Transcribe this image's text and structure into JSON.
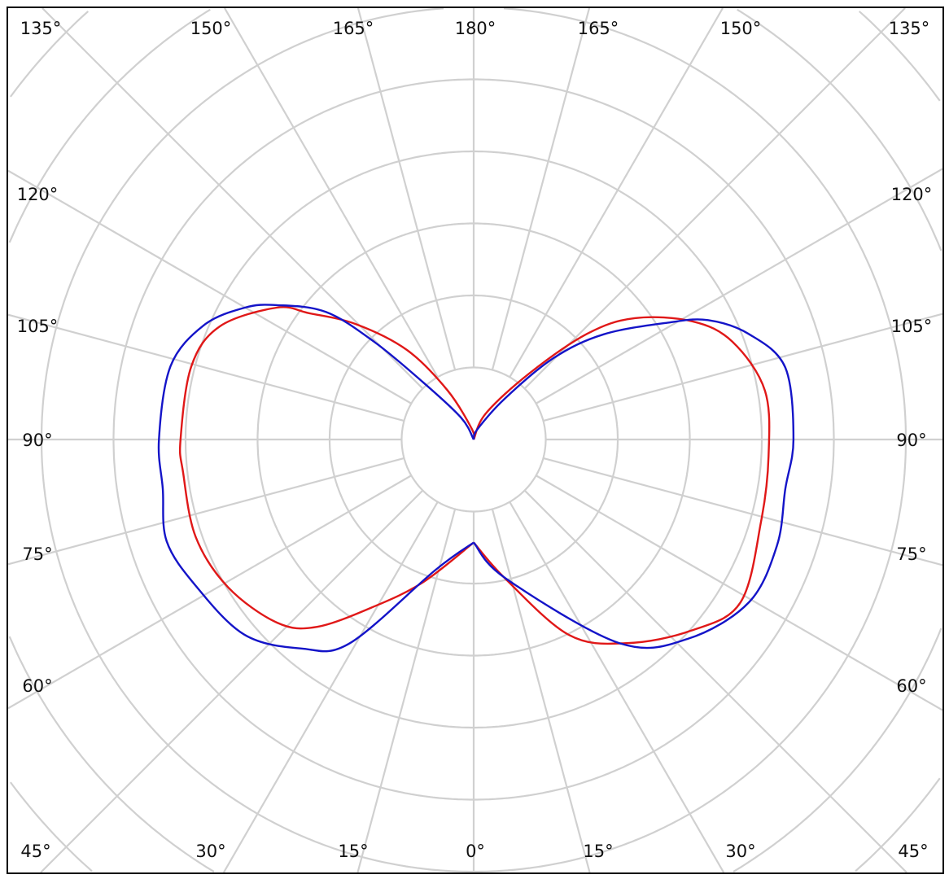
{
  "chart_data": {
    "type": "polar",
    "title": "",
    "angle_unit": "degrees",
    "angle_zero": "bottom",
    "angle_step": 15,
    "radial_unit": "ring",
    "radial_rings": 9,
    "radial_tick_labels_shown": false,
    "grid": true,
    "grid_color": "#d0d0d0",
    "tick_labels": {
      "top": [
        "135°",
        "150°",
        "165°",
        "180°",
        "165°",
        "150°",
        "135°"
      ],
      "left": [
        "120°",
        "105°",
        "90°",
        "75°",
        "60°"
      ],
      "right": [
        "120°",
        "105°",
        "90°",
        "75°",
        "60°"
      ],
      "bottom": [
        "45°",
        "30°",
        "15°",
        "0°",
        "15°",
        "30°",
        "45°"
      ]
    },
    "series": [
      {
        "color": "#e01818",
        "left": [
          [
            0,
            1.43
          ],
          [
            19.5,
            2.1
          ],
          [
            30.8,
            2.7
          ],
          [
            39.9,
            3.39
          ],
          [
            47,
            3.73
          ],
          [
            59,
            3.98
          ],
          [
            70.7,
            4.09
          ],
          [
            83.6,
            4.06
          ],
          [
            90,
            4.07
          ],
          [
            104.5,
            4.05
          ],
          [
            114,
            3.86
          ],
          [
            123.8,
            3.29
          ],
          [
            127.5,
            2.88
          ],
          [
            134.4,
            2.29
          ],
          [
            143.3,
            1.55
          ],
          [
            152,
            0.77
          ],
          [
            170,
            0.15
          ],
          [
            180,
            0
          ]
        ],
        "right": [
          [
            0,
            1.43
          ],
          [
            12.6,
            1.97
          ],
          [
            26,
            3.02
          ],
          [
            37,
            3.54
          ],
          [
            48.7,
            4.02
          ],
          [
            58.6,
            4.34
          ],
          [
            74,
            4.15
          ],
          [
            86.8,
            4.1
          ],
          [
            99.5,
            4.1
          ],
          [
            110.7,
            3.84
          ],
          [
            118.4,
            3.45
          ],
          [
            127,
            2.8
          ],
          [
            133,
            2.15
          ],
          [
            140,
            1.19
          ],
          [
            155,
            0.4
          ],
          [
            180,
            0
          ]
        ]
      },
      {
        "color": "#1414c8",
        "left": [
          [
            0,
            1.43
          ],
          [
            16.4,
            1.89
          ],
          [
            31.3,
            3.31
          ],
          [
            39.5,
            3.76
          ],
          [
            49.6,
            4.18
          ],
          [
            62.2,
            4.36
          ],
          [
            71.7,
            4.49
          ],
          [
            81,
            4.37
          ],
          [
            90,
            4.37
          ],
          [
            103.6,
            4.33
          ],
          [
            112.9,
            4.07
          ],
          [
            119.9,
            3.67
          ],
          [
            124.3,
            3.31
          ],
          [
            130.8,
            2.71
          ],
          [
            134.5,
            1.93
          ],
          [
            138.5,
            1.06
          ],
          [
            150,
            0.35
          ],
          [
            180,
            0
          ]
        ],
        "right": [
          [
            0,
            1.43
          ],
          [
            13,
            1.98
          ],
          [
            35.5,
            3.47
          ],
          [
            47,
            4.06
          ],
          [
            59.4,
            4.44
          ],
          [
            70.8,
            4.46
          ],
          [
            81,
            4.38
          ],
          [
            90,
            4.44
          ],
          [
            103,
            4.44
          ],
          [
            111,
            4.09
          ],
          [
            117,
            3.65
          ],
          [
            121,
            3.15
          ],
          [
            129,
            2.32
          ],
          [
            135.6,
            1.58
          ],
          [
            142.8,
            0.71
          ],
          [
            160,
            0.15
          ],
          [
            180,
            0
          ]
        ]
      }
    ]
  }
}
